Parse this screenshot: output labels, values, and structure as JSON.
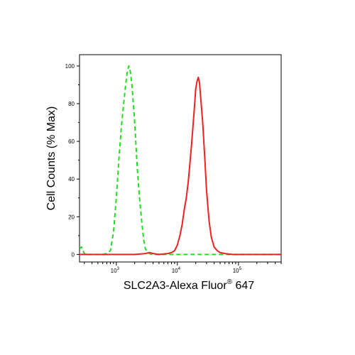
{
  "chart_data": {
    "type": "line",
    "title": "",
    "xlabel": "SLC2A3-Alexa Fluor",
    "xlabel_superscript": "®",
    "xlabel_suffix": " 647",
    "ylabel": "Cell Counts (% Max)",
    "x_scale": "log",
    "xlim": [
      250,
      500000
    ],
    "ylim": [
      -4,
      106
    ],
    "y_ticks": [
      0,
      20,
      40,
      60,
      80,
      100
    ],
    "y_tick_labels": [
      "0",
      "20",
      "40",
      "60",
      "80",
      "100"
    ],
    "x_tick_labels": [
      {
        "base": "10",
        "exp": "3",
        "value": 1000
      },
      {
        "base": "10",
        "exp": "4",
        "value": 10000
      },
      {
        "base": "10",
        "exp": "5",
        "value": 100000
      }
    ],
    "grid": false,
    "series": [
      {
        "color": "#22dd22",
        "style": "dashed",
        "x": [
          250,
          270,
          285,
          300,
          320,
          350,
          400,
          500,
          600,
          700,
          800,
          900,
          1000,
          1100,
          1200,
          1300,
          1400,
          1500,
          1600,
          1700,
          1800,
          1900,
          2000,
          2100,
          2200,
          2400,
          2600,
          2800,
          3000,
          3300,
          3600,
          4000,
          5000,
          8000,
          20000,
          100000,
          500000
        ],
        "y": [
          3,
          4,
          2,
          0.5,
          0,
          0,
          0,
          0,
          0,
          0.5,
          2,
          12,
          30,
          50,
          66,
          78,
          88,
          96,
          100,
          97,
          90,
          80,
          70,
          58,
          46,
          30,
          18,
          8,
          3,
          1,
          0.3,
          0,
          0,
          0,
          0,
          0,
          0
        ]
      },
      {
        "color": "#ee2222",
        "style": "solid",
        "x": [
          250,
          2000,
          3000,
          3500,
          4000,
          5000,
          7000,
          8000,
          9000,
          10000,
          11000,
          12000,
          13000,
          14000,
          15000,
          16000,
          17000,
          18000,
          19000,
          20000,
          21000,
          22000,
          23000,
          24000,
          26000,
          28000,
          30000,
          33000,
          36000,
          40000,
          45000,
          50000,
          60000,
          80000,
          150000,
          500000
        ],
        "y": [
          0,
          0,
          0.5,
          1,
          0.5,
          0,
          0.5,
          1,
          2,
          5,
          10,
          16,
          24,
          30,
          38,
          48,
          58,
          68,
          78,
          88,
          92,
          94,
          91,
          84,
          70,
          52,
          34,
          18,
          9,
          4,
          2,
          1,
          0.5,
          0,
          0,
          0
        ]
      }
    ]
  }
}
